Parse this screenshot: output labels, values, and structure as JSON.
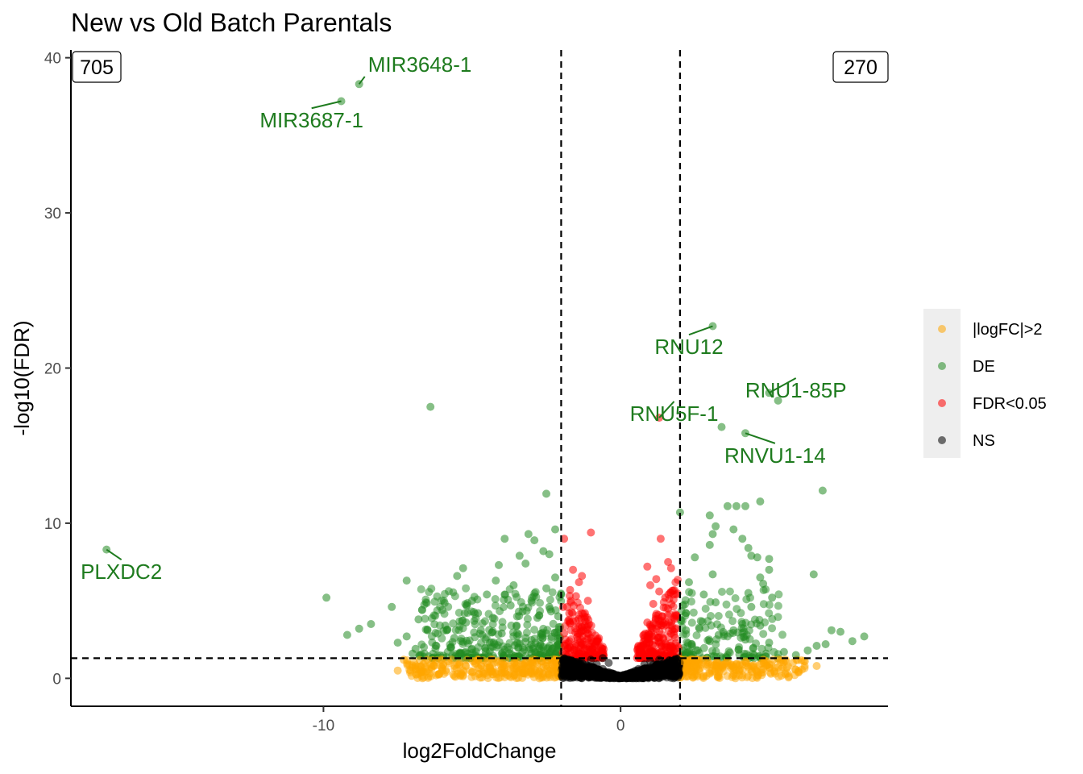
{
  "chart_data": {
    "type": "scatter",
    "title": "New vs Old Batch Parentals",
    "xlabel": "log2FoldChange",
    "ylabel": "-log10(FDR)",
    "xlim": [
      -18.5,
      9
    ],
    "ylim": [
      -1.8,
      40.5
    ],
    "x_ticks": [
      -10,
      0
    ],
    "y_ticks": [
      0,
      10,
      20,
      30,
      40
    ],
    "grid": false,
    "legend_position": "right",
    "thresholds": {
      "log2fc": [
        -2,
        2
      ],
      "neg_log10_fdr": 1.3
    },
    "corner_counts": {
      "left": "705",
      "right": "270"
    },
    "legend": [
      {
        "label": "|logFC|>2",
        "color": "#FFA500"
      },
      {
        "label": "DE",
        "color": "#228B22"
      },
      {
        "label": "FDR<0.05",
        "color": "#FF0000"
      },
      {
        "label": "NS",
        "color": "#000000"
      }
    ],
    "labeled_points": [
      {
        "gene": "MIR3648-1",
        "x": -8.8,
        "y": 38.3,
        "label_x": -8.5,
        "label_y": 39.1,
        "anchor": "start"
      },
      {
        "gene": "MIR3687-1",
        "x": -9.4,
        "y": 37.2,
        "label_x": -10.4,
        "label_y": 35.5,
        "anchor": "middle"
      },
      {
        "gene": "RNU12",
        "x": 3.1,
        "y": 22.7,
        "label_x": 2.3,
        "label_y": 20.9,
        "anchor": "middle"
      },
      {
        "gene": "RNU1-85P",
        "x": 5.0,
        "y": 18.4,
        "label_x": 5.9,
        "label_y": 18.1,
        "anchor": "middle"
      },
      {
        "gene": "RNU5F-1",
        "x": 1.3,
        "y": 16.8,
        "label_x": 1.8,
        "label_y": 16.6,
        "anchor": "middle"
      },
      {
        "gene": "RNVU1-14",
        "x": 4.2,
        "y": 15.8,
        "label_x": 5.2,
        "label_y": 13.9,
        "anchor": "middle"
      },
      {
        "gene": "PLXDC2",
        "x": -17.3,
        "y": 8.3,
        "label_x": -16.8,
        "label_y": 6.4,
        "anchor": "middle"
      }
    ],
    "series": [
      {
        "name": "DE",
        "color": "#228B22",
        "points": [
          [
            -8.8,
            38.3
          ],
          [
            -9.4,
            37.2
          ],
          [
            3.1,
            22.7
          ],
          [
            5.0,
            18.4
          ],
          [
            5.3,
            17.9
          ],
          [
            3.4,
            16.2
          ],
          [
            4.2,
            15.8
          ],
          [
            -6.4,
            17.5
          ],
          [
            -17.3,
            8.3
          ],
          [
            -9.9,
            5.2
          ],
          [
            -2.5,
            11.9
          ],
          [
            6.8,
            12.1
          ],
          [
            2.0,
            10.7
          ],
          [
            3.0,
            10.5
          ],
          [
            3.2,
            9.8
          ],
          [
            3.1,
            9.3
          ],
          [
            3.6,
            11.1
          ],
          [
            3.9,
            11.1
          ],
          [
            4.2,
            11.1
          ],
          [
            4.7,
            11.4
          ],
          [
            3.8,
            9.6
          ],
          [
            4.1,
            9.0
          ],
          [
            3.0,
            8.6
          ],
          [
            4.3,
            8.4
          ],
          [
            4.4,
            7.9
          ],
          [
            4.6,
            7.8
          ],
          [
            5.0,
            7.7
          ],
          [
            5.0,
            7.0
          ],
          [
            6.5,
            6.7
          ],
          [
            4.7,
            6.5
          ],
          [
            4.8,
            6.1
          ],
          [
            4.3,
            5.5
          ],
          [
            5.1,
            5.2
          ],
          [
            4.4,
            4.6
          ],
          [
            4.7,
            3.4
          ],
          [
            2.5,
            7.8
          ],
          [
            2.3,
            6.2
          ],
          [
            2.8,
            5.4
          ],
          [
            3.1,
            6.7
          ],
          [
            3.2,
            4.9
          ],
          [
            2.1,
            4.7
          ],
          [
            -3.9,
            9.0
          ],
          [
            -3.1,
            9.3
          ],
          [
            -2.9,
            8.9
          ],
          [
            -2.2,
            9.6
          ],
          [
            -2.4,
            8.0
          ],
          [
            -2.6,
            8.2
          ],
          [
            -3.4,
            7.9
          ],
          [
            -3.2,
            7.4
          ],
          [
            -4.1,
            7.3
          ],
          [
            -5.3,
            7.1
          ],
          [
            -5.5,
            6.6
          ],
          [
            -7.2,
            6.3
          ],
          [
            -4.2,
            6.3
          ],
          [
            -2.2,
            6.5
          ],
          [
            -3.9,
            5.4
          ],
          [
            -4.5,
            5.4
          ],
          [
            -5.0,
            5.0
          ],
          [
            -6.0,
            4.4
          ],
          [
            -7.7,
            4.6
          ],
          [
            -8.4,
            3.5
          ],
          [
            -8.8,
            3.2
          ],
          [
            -9.2,
            2.8
          ],
          [
            -7.2,
            2.7
          ],
          [
            -6.8,
            3.8
          ],
          [
            -6.5,
            3.1
          ],
          [
            -5.9,
            3.4
          ],
          [
            -5.2,
            3.6
          ],
          [
            -4.7,
            3.1
          ],
          [
            -4.3,
            3.9
          ],
          [
            -3.7,
            4.7
          ],
          [
            -3.3,
            4.3
          ],
          [
            -2.8,
            3.9
          ],
          [
            -2.4,
            4.6
          ],
          [
            -2.1,
            4.0
          ],
          [
            7.4,
            3.0
          ],
          [
            7.8,
            2.4
          ],
          [
            7.1,
            3.1
          ],
          [
            6.9,
            2.2
          ],
          [
            6.6,
            2.1
          ],
          [
            6.3,
            1.8
          ],
          [
            8.2,
            2.7
          ],
          [
            5.9,
            1.5
          ],
          [
            5.5,
            1.7
          ],
          [
            4.9,
            1.6
          ],
          [
            4.5,
            1.5
          ],
          [
            5.0,
            2.3
          ],
          [
            4.2,
            2.5
          ],
          [
            3.8,
            3.1
          ],
          [
            3.3,
            2.8
          ],
          [
            2.7,
            3.7
          ],
          [
            2.4,
            2.2
          ],
          [
            2.2,
            3.1
          ],
          [
            2.6,
            1.8
          ],
          [
            3.0,
            2.4
          ],
          [
            -6.9,
            1.9
          ],
          [
            -6.2,
            2.1
          ],
          [
            -5.6,
            2.6
          ],
          [
            -5.0,
            1.9
          ],
          [
            -4.4,
            2.3
          ],
          [
            -3.8,
            2.0
          ],
          [
            -3.2,
            2.6
          ],
          [
            -2.7,
            2.2
          ],
          [
            -2.3,
            1.9
          ],
          [
            -2.1,
            2.8
          ],
          [
            -4.0,
            2.9
          ],
          [
            -3.5,
            3.4
          ],
          [
            -5.4,
            1.6
          ],
          [
            -7.5,
            2.3
          ],
          [
            -7.0,
            1.6
          ],
          [
            -4.8,
            4.2
          ],
          [
            -3.0,
            5.0
          ],
          [
            -2.5,
            5.8
          ],
          [
            -2.0,
            5.4
          ],
          [
            -3.6,
            6.0
          ],
          [
            -4.0,
            1.6
          ],
          [
            -3.0,
            1.6
          ],
          [
            -2.4,
            1.5
          ]
        ]
      },
      {
        "name": "FDR<0.05",
        "color": "#FF0000",
        "points": [
          [
            1.3,
            16.8
          ],
          [
            -1.9,
            9.0
          ],
          [
            -1.6,
            7.0
          ],
          [
            -1.3,
            6.6
          ],
          [
            -1.4,
            6.2
          ],
          [
            -1.7,
            5.7
          ],
          [
            -1.5,
            5.3
          ],
          [
            -1.1,
            5.0
          ],
          [
            -1.8,
            4.6
          ],
          [
            -1.2,
            4.2
          ],
          [
            -1.6,
            3.7
          ],
          [
            -1.3,
            3.3
          ],
          [
            -1.9,
            2.9
          ],
          [
            -1.0,
            2.6
          ],
          [
            -1.5,
            2.2
          ],
          [
            -1.2,
            1.9
          ],
          [
            -0.9,
            1.6
          ],
          [
            -1.7,
            1.8
          ],
          [
            -0.7,
            1.5
          ],
          [
            -1.0,
            9.4
          ],
          [
            0.9,
            7.2
          ],
          [
            1.2,
            6.4
          ],
          [
            1.0,
            6.0
          ],
          [
            1.6,
            7.5
          ],
          [
            1.7,
            7.1
          ],
          [
            1.3,
            5.6
          ],
          [
            1.5,
            5.2
          ],
          [
            1.1,
            4.8
          ],
          [
            1.6,
            4.5
          ],
          [
            1.4,
            4.0
          ],
          [
            0.9,
            3.6
          ],
          [
            1.2,
            3.2
          ],
          [
            1.7,
            2.9
          ],
          [
            0.8,
            2.6
          ],
          [
            1.3,
            2.3
          ],
          [
            1.5,
            2.0
          ],
          [
            1.0,
            1.8
          ],
          [
            0.7,
            1.6
          ],
          [
            1.8,
            1.7
          ],
          [
            1.35,
            9.0
          ],
          [
            1.8,
            3.9
          ],
          [
            0.6,
            2.1
          ]
        ]
      },
      {
        "name": "|logFC|>2",
        "color": "#FFA500",
        "points": [
          [
            -7.0,
            0.7
          ],
          [
            -6.5,
            1.2
          ],
          [
            -6.0,
            0.5
          ],
          [
            -5.5,
            0.9
          ],
          [
            -5.0,
            0.4
          ],
          [
            -4.5,
            1.0
          ],
          [
            -4.0,
            0.6
          ],
          [
            -3.5,
            1.1
          ],
          [
            -3.0,
            0.3
          ],
          [
            -2.5,
            0.8
          ],
          [
            -2.2,
            0.5
          ],
          [
            -6.8,
            0.3
          ],
          [
            -5.8,
            1.1
          ],
          [
            -4.8,
            0.7
          ],
          [
            -3.8,
            0.2
          ],
          [
            -2.8,
            0.9
          ],
          [
            -7.3,
            1.2
          ],
          [
            -6.3,
            0.8
          ],
          [
            -5.3,
            0.2
          ],
          [
            -4.3,
            1.2
          ],
          [
            -3.3,
            0.6
          ],
          [
            -2.4,
            0.2
          ],
          [
            -7.5,
            0.5
          ],
          [
            -6.6,
            0.4
          ],
          [
            2.2,
            0.6
          ],
          [
            2.6,
            1.0
          ],
          [
            3.0,
            0.3
          ],
          [
            3.4,
            0.8
          ],
          [
            3.8,
            0.5
          ],
          [
            4.2,
            1.1
          ],
          [
            4.6,
            0.4
          ],
          [
            5.0,
            0.9
          ],
          [
            5.4,
            0.6
          ],
          [
            5.8,
            1.0
          ],
          [
            6.0,
            0.4
          ],
          [
            2.4,
            0.2
          ],
          [
            2.8,
            1.2
          ],
          [
            3.2,
            0.6
          ],
          [
            3.6,
            1.1
          ],
          [
            4.0,
            0.2
          ],
          [
            4.4,
            0.8
          ],
          [
            4.8,
            1.2
          ],
          [
            5.2,
            0.3
          ],
          [
            5.6,
            0.7
          ],
          [
            6.2,
            1.1
          ],
          [
            6.6,
            0.8
          ],
          [
            2.1,
            1.1
          ],
          [
            3.9,
            0.9
          ]
        ]
      },
      {
        "name": "NS",
        "color": "#000000",
        "points": [
          [
            -1.9,
            1.2
          ],
          [
            -1.7,
            0.8
          ],
          [
            -1.5,
            0.5
          ],
          [
            -1.3,
            1.0
          ],
          [
            -1.1,
            0.3
          ],
          [
            -0.9,
            0.7
          ],
          [
            -0.7,
            0.4
          ],
          [
            -0.5,
            0.2
          ],
          [
            -0.3,
            0.1
          ],
          [
            -1.8,
            0.3
          ],
          [
            -1.6,
            1.1
          ],
          [
            -1.4,
            0.2
          ],
          [
            -1.2,
            0.6
          ],
          [
            -1.0,
            1.2
          ],
          [
            -0.8,
            0.9
          ],
          [
            -0.6,
            0.6
          ],
          [
            -0.4,
            0.4
          ],
          [
            -0.2,
            0.05
          ],
          [
            0.2,
            0.1
          ],
          [
            0.4,
            0.3
          ],
          [
            0.6,
            0.6
          ],
          [
            0.8,
            0.9
          ],
          [
            1.0,
            1.1
          ],
          [
            1.2,
            0.4
          ],
          [
            1.4,
            0.8
          ],
          [
            1.6,
            1.0
          ],
          [
            1.8,
            0.5
          ],
          [
            1.9,
            1.2
          ],
          [
            0.3,
            0.2
          ],
          [
            0.5,
            0.5
          ],
          [
            0.7,
            0.3
          ],
          [
            0.9,
            0.6
          ],
          [
            1.1,
            0.9
          ],
          [
            1.3,
            1.2
          ],
          [
            1.5,
            0.2
          ],
          [
            1.7,
            0.7
          ],
          [
            -0.6,
            1.3
          ],
          [
            -0.4,
            1.0
          ],
          [
            -1.9,
            0.6
          ],
          [
            1.0,
            0.2
          ]
        ]
      }
    ]
  }
}
